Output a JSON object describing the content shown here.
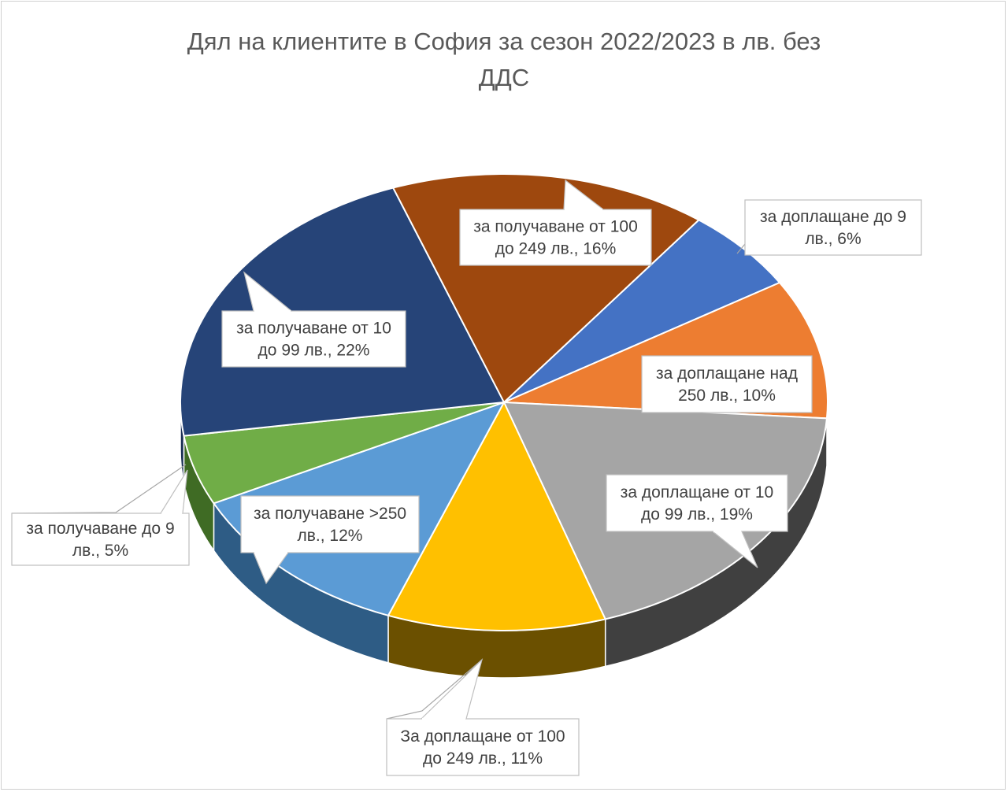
{
  "chart_data": {
    "type": "pie",
    "title": "Дял на клиентите в София за сезон 2022/2023 в лв. без ДДС",
    "title_lines": [
      "Дял на клиентите в София за сезон 2022/2023 в лв. без",
      "ДДС"
    ],
    "three_d": true,
    "legend": "none",
    "slices": [
      {
        "label": "за доплащане до 9 лв.",
        "value": 6,
        "display": [
          "за доплащане до 9",
          "лв., 6%"
        ],
        "color": "#4472C4",
        "side_color": "#2F5597"
      },
      {
        "label": "за доплащане над 250 лв.",
        "value": 10,
        "display": [
          "за доплащане над",
          "250 лв., 10%"
        ],
        "color": "#ED7D31",
        "side_color": "#A5501A"
      },
      {
        "label": "за доплащане от 10 до 99 лв.",
        "value": 19,
        "display": [
          "за доплащане от 10",
          "до 99 лв., 19%"
        ],
        "color": "#A5A5A5",
        "side_color": "#404040"
      },
      {
        "label": "За доплащане от 100 до 249 лв.",
        "value": 11,
        "display": [
          "За доплащане от 100",
          "до 249 лв., 11%"
        ],
        "color": "#FFC000",
        "side_color": "#6B5000"
      },
      {
        "label": "за получаване >250 лв.",
        "value": 12,
        "display": [
          "за получаване >250",
          "лв., 12%"
        ],
        "color": "#5B9BD5",
        "side_color": "#2E5C85"
      },
      {
        "label": "за получаване до 9 лв.",
        "value": 5,
        "display": [
          "за получаване до 9",
          "лв., 5%"
        ],
        "color": "#70AD47",
        "side_color": "#3F6B24"
      },
      {
        "label": "за получаване от 10 до 99 лв.",
        "value": 22,
        "display": [
          "за получаване от 10",
          "до 99 лв., 22%"
        ],
        "color": "#264478",
        "side_color": "#1A2F55"
      },
      {
        "label": "за получаване от 100 до 249 лв.",
        "value": 16,
        "display": [
          "за получаване от 100",
          "до 249 лв., 16%"
        ],
        "color": "#9E480E",
        "side_color": "#5E2B08"
      }
    ]
  }
}
